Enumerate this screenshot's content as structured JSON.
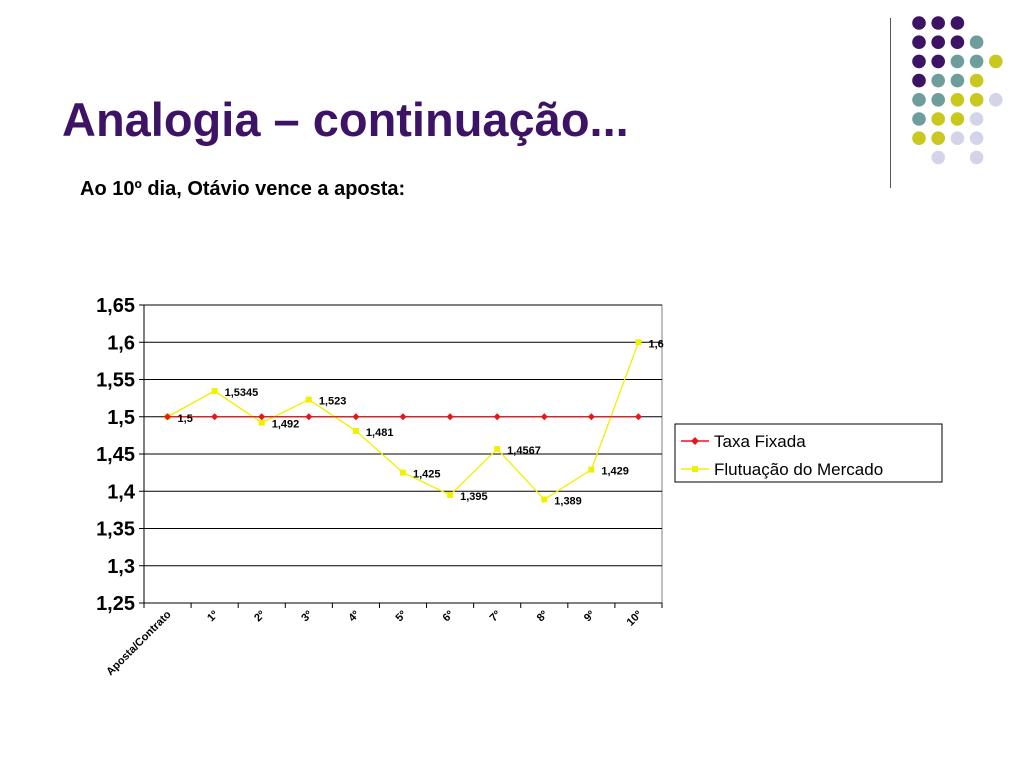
{
  "slide": {
    "title": "Analogia – continuação...",
    "subtitle": "Ao 10º dia, Otávio vence a aposta:"
  },
  "decoration": {
    "dot_colors": {
      "purple": "#3d1366",
      "teal": "#6e9e9c",
      "yellow": "#c8c81e",
      "lavender": "#d4d4e8"
    },
    "dot_grid": [
      [
        "purple",
        "purple",
        "purple",
        ""
      ],
      [
        "purple",
        "purple",
        "purple",
        "teal"
      ],
      [
        "purple",
        "purple",
        "teal",
        "teal",
        "yellow"
      ],
      [
        "purple",
        "teal",
        "teal",
        "yellow"
      ],
      [
        "teal",
        "teal",
        "yellow",
        "yellow",
        "lavender"
      ],
      [
        "teal",
        "yellow",
        "yellow",
        "lavender"
      ],
      [
        "yellow",
        "yellow",
        "lavender",
        "lavender"
      ],
      [
        "",
        "lavender",
        "",
        "lavender"
      ]
    ]
  },
  "chart_data": {
    "type": "line",
    "categories": [
      "Aposta/Contrato",
      "1º",
      "2º",
      "3º",
      "4º",
      "5º",
      "6º",
      "7º",
      "8º",
      "9º",
      "10º"
    ],
    "ylim": [
      1.25,
      1.65
    ],
    "yticks": [
      "1,25",
      "1,3",
      "1,35",
      "1,4",
      "1,45",
      "1,5",
      "1,55",
      "1,6",
      "1,65"
    ],
    "ytick_values": [
      1.25,
      1.3,
      1.35,
      1.4,
      1.45,
      1.5,
      1.55,
      1.6,
      1.65
    ],
    "grid": true,
    "legend_position": "right",
    "series": [
      {
        "name": "Taxa Fixada",
        "color": "#e8141e",
        "marker": "diamond",
        "values": [
          1.5,
          1.5,
          1.5,
          1.5,
          1.5,
          1.5,
          1.5,
          1.5,
          1.5,
          1.5,
          1.5
        ],
        "labels": [
          "1,5",
          "",
          "",
          "",
          "",
          "",
          "",
          "",
          "",
          "",
          ""
        ]
      },
      {
        "name": "Flutuação do Mercado",
        "color": "#f0f000",
        "marker": "square",
        "values": [
          1.5,
          1.5345,
          1.492,
          1.523,
          1.481,
          1.425,
          1.395,
          1.4567,
          1.389,
          1.429,
          1.6
        ],
        "labels": [
          "",
          "1,5345",
          "1,492",
          "1,523",
          "1,481",
          "1,425",
          "1,395",
          "1,4567",
          "1,389",
          "1,429",
          "1,6"
        ]
      }
    ]
  }
}
